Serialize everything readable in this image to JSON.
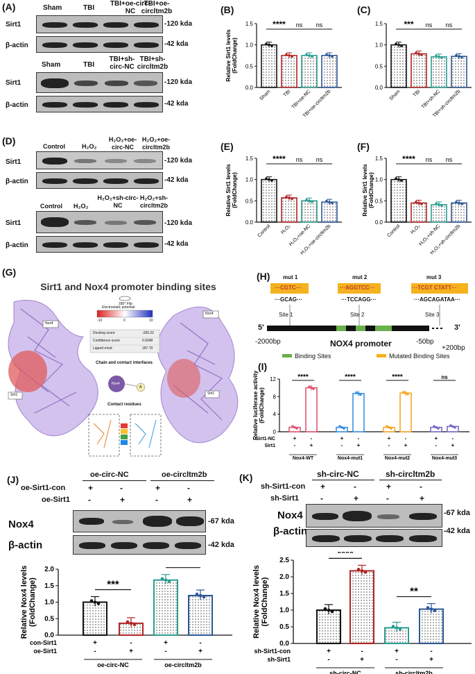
{
  "panels": {
    "A": "(A)",
    "B": "(B)",
    "C": "(C)",
    "D": "(D)",
    "E": "(E)",
    "F": "(F)",
    "G": "(G)",
    "H": "(H)",
    "I": "(I)",
    "J": "(J)",
    "K": "(K)"
  },
  "blotA": {
    "top_lanes": [
      "Sham",
      "TBI",
      "TBI+oe-circ-NC",
      "TBI+oe-circltm2b"
    ],
    "bottom_lanes": [
      "Sham",
      "TBI",
      "TBI+sh-circ-NC",
      "TBI+sh-circltm2b"
    ],
    "rows": [
      "Sirt1",
      "β-actin"
    ],
    "kda": [
      "-120 kda",
      "-42 kda"
    ]
  },
  "blotD": {
    "top_lanes": [
      "Control",
      "H₂O₂",
      "H₂O₂+oe-circ-NC",
      "H₂O₂+oe-circltm2b"
    ],
    "bottom_lanes": [
      "Control",
      "H₂O₂",
      "H₂O₂+sh-circ-NC",
      "H₂O₂+sh-circltm2b"
    ],
    "rows": [
      "Sirt1",
      "β-actin"
    ],
    "kda": [
      "-120 kda",
      "-42 kda"
    ]
  },
  "panelG": {
    "title": "Sirt1 and Nox4 promoter binding sites",
    "flip": "180° Flip",
    "ep_label": "Electrostatic potential",
    "ep_ticks": [
      "-10",
      "0",
      "10"
    ],
    "scores": [
      [
        "Docking score",
        "-283.22"
      ],
      [
        "Confidence score",
        "0.9348"
      ],
      [
        "Ligand rmsd",
        "187.70"
      ]
    ],
    "chain_label": "Chain and contact interfaces",
    "contact_label": "Contact residues",
    "node_left": "Nox4",
    "node_right": "A",
    "mol_labels": [
      "Nox4",
      "Sirt1",
      "Nox4",
      "Sirt1"
    ]
  },
  "panelH": {
    "muts": [
      {
        "name": "mut 1",
        "mutated": "···CGTC···",
        "wt": "···GCAG···",
        "site": "Site 1"
      },
      {
        "name": "mut 2",
        "mutated": "···AGGTCC···",
        "wt": "···TCCAGG···",
        "site": "Site 2"
      },
      {
        "name": "mut 3",
        "mutated": "···TCGT CTATT···",
        "wt": "···AGCAGATAA···",
        "site": "Site 3"
      }
    ],
    "five": "5'",
    "three": "3'",
    "pos_left": "-2000bp",
    "pos_mid": "-50bp",
    "pos_right": "+200bp",
    "promoter": "NOX4 promoter",
    "legend": [
      "Binding Sites",
      "Mutated Binding Sites"
    ],
    "colors": {
      "binding": "#6ab04c",
      "mutated": "#f5b21f"
    }
  },
  "chart_data": [
    {
      "panel": "B",
      "type": "bar",
      "ylabel": "Relative Sirt1 levels\n(FoldChange)",
      "ylim": [
        0,
        1.5
      ],
      "yticks": [
        "0.0",
        "0.5",
        "1.0",
        "1.5"
      ],
      "categories": [
        "Sham",
        "TBI",
        "TBI+oe-NC",
        "TBI+oe-circltm2b"
      ],
      "values": [
        1.0,
        0.75,
        0.75,
        0.75
      ],
      "sig": [
        {
          "from": 0,
          "to": 1,
          "label": "****"
        },
        {
          "from": 1,
          "to": 2,
          "label": "ns"
        },
        {
          "from": 2,
          "to": 3,
          "label": "ns"
        }
      ]
    },
    {
      "panel": "C",
      "type": "bar",
      "ylabel": "",
      "ylim": [
        0,
        1.5
      ],
      "yticks": [
        "0.0",
        "0.5",
        "1.0",
        "1.5"
      ],
      "categories": [
        "Sham",
        "TBI",
        "TBI+sh-NC",
        "TBI+sh-circltm2b"
      ],
      "values": [
        1.0,
        0.79,
        0.72,
        0.73
      ],
      "sig": [
        {
          "from": 0,
          "to": 1,
          "label": "***"
        },
        {
          "from": 1,
          "to": 2,
          "label": "ns"
        },
        {
          "from": 2,
          "to": 3,
          "label": "ns"
        }
      ]
    },
    {
      "panel": "E",
      "type": "bar",
      "ylabel": "Relative Sirt1 levels\n(FoldChange)",
      "ylim": [
        0,
        1.5
      ],
      "yticks": [
        "0.0",
        "0.5",
        "1.0",
        "1.5"
      ],
      "categories": [
        "Control",
        "H₂O₂",
        "H₂O₂+oe-NC",
        "H₂O₂+oe-circltm2b"
      ],
      "values": [
        1.0,
        0.57,
        0.5,
        0.47
      ],
      "sig": [
        {
          "from": 0,
          "to": 1,
          "label": "****"
        },
        {
          "from": 1,
          "to": 2,
          "label": "ns"
        },
        {
          "from": 2,
          "to": 3,
          "label": "ns"
        }
      ]
    },
    {
      "panel": "F",
      "type": "bar",
      "ylabel": "Relative Sirt1 levels\n(FoldChange)",
      "ylim": [
        0,
        1.5
      ],
      "yticks": [
        "0.0",
        "0.5",
        "1.0",
        "1.5"
      ],
      "categories": [
        "Control",
        "H₂O₂",
        "H₂O₂+sh-NC",
        "H₂O₂+sh-circltm2b"
      ],
      "values": [
        1.0,
        0.45,
        0.41,
        0.45
      ],
      "sig": [
        {
          "from": 0,
          "to": 1,
          "label": "****"
        },
        {
          "from": 1,
          "to": 2,
          "label": "ns"
        },
        {
          "from": 2,
          "to": 3,
          "label": "ns"
        }
      ]
    },
    {
      "panel": "I",
      "type": "bar",
      "ylabel": "Relative luciferase activity\n(FoldChange)",
      "ylim": [
        0,
        12
      ],
      "yticks": [
        "0",
        "4",
        "8",
        "12"
      ],
      "groups": [
        "Nox4-WT",
        "Nox4-mut1",
        "Nox4-mut2",
        "Nox4-mut3"
      ],
      "values": [
        [
          1.0,
          10.0
        ],
        [
          1.0,
          8.7
        ],
        [
          1.0,
          8.8
        ],
        [
          1.0,
          1.2
        ]
      ],
      "sig": [
        "****",
        "****",
        "****",
        "ns"
      ],
      "rows": [
        {
          "label": "Sirt1-NC",
          "marks": [
            "+",
            "-",
            "+",
            "-",
            "+",
            "-",
            "+",
            "-"
          ]
        },
        {
          "label": "Sirt1",
          "marks": [
            "-",
            "+",
            "-",
            "+",
            "-",
            "+",
            "-",
            "+"
          ]
        }
      ]
    },
    {
      "panel": "J",
      "type": "bar",
      "ylabel": "Relative Nox4 levels\n(FoldChange)",
      "ylim": [
        0,
        2.0
      ],
      "yticks": [
        "0.0",
        "0.5",
        "1.0",
        "1.5",
        "2.0"
      ],
      "values": [
        1.0,
        0.36,
        1.67,
        1.2
      ],
      "groups": [
        "oe-circ-NC",
        "oe-circltm2b"
      ],
      "sig": [
        {
          "from": 0,
          "to": 1,
          "label": "***"
        },
        {
          "from": 2,
          "to": 3,
          "label": "**"
        }
      ],
      "rows": [
        {
          "label": "con-Sirt1",
          "marks": [
            "+",
            "-",
            "+",
            "-"
          ]
        },
        {
          "label": "oe-Sirt1",
          "marks": [
            "-",
            "+",
            "-",
            "+"
          ]
        }
      ]
    },
    {
      "panel": "K",
      "type": "bar",
      "ylabel": "Relative Nox4 levels\n(FoldChange)",
      "ylim": [
        0,
        2.5
      ],
      "yticks": [
        "0.0",
        "0.5",
        "1.0",
        "1.5",
        "2.0",
        "2.5"
      ],
      "values": [
        1.0,
        2.18,
        0.47,
        1.03
      ],
      "groups": [
        "sh-circ-NC",
        "sh-circltm2b"
      ],
      "sig": [
        {
          "from": 0,
          "to": 1,
          "label": "****"
        },
        {
          "from": 2,
          "to": 3,
          "label": "**"
        }
      ],
      "rows": [
        {
          "label": "sh-Sirt1-con",
          "marks": [
            "+",
            "-",
            "+",
            "-"
          ]
        },
        {
          "label": "sh-Sirt1",
          "marks": [
            "-",
            "+",
            "-",
            "+"
          ]
        }
      ]
    }
  ],
  "blotJ": {
    "groups": [
      "oe-circ-NC",
      "oe-circltm2b"
    ],
    "rows_top": [
      {
        "label": "oe-Sirt1-con",
        "marks": [
          "+",
          "-",
          "+",
          "-"
        ]
      },
      {
        "label": "oe-Sirt1",
        "marks": [
          "-",
          "+",
          "-",
          "+"
        ]
      }
    ],
    "bands": [
      "Nox4",
      "β-actin"
    ],
    "kda": [
      "-67 kda",
      "-42 kda"
    ]
  },
  "blotK": {
    "groups": [
      "sh-circ-NC",
      "sh-circltm2b"
    ],
    "rows_top": [
      {
        "label": "sh-Sirt1-con",
        "marks": [
          "+",
          "-",
          "+",
          "-"
        ]
      },
      {
        "label": "sh-Sirt1",
        "marks": [
          "-",
          "+",
          "-",
          "+"
        ]
      }
    ],
    "bands": [
      "Nox4",
      "β-actin"
    ],
    "kda": [
      "-67 kda",
      "-42 kda"
    ]
  },
  "colors": {
    "black": "#111111",
    "red": "#b22222",
    "teal": "#2a9d8f",
    "blue": "#2b5797",
    "pink": "#e05570",
    "sky": "#3b8fe0",
    "orange": "#f5a623",
    "purple": "#7b68c8"
  }
}
